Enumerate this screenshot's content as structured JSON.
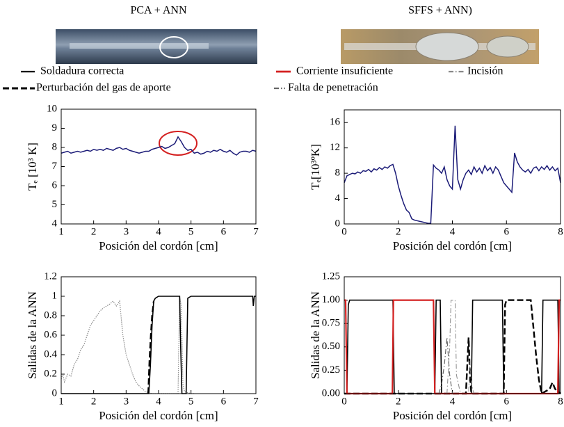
{
  "chart_data": [
    {
      "type": "line",
      "title": "PCA + ANN",
      "xlabel": "Posición del cordón [cm]",
      "ylabel": "Tₑ [10³ K]",
      "xlim": [
        1,
        7
      ],
      "xticks": [
        1,
        2,
        3,
        4,
        5,
        6,
        7
      ],
      "ylim": [
        4,
        10
      ],
      "yticks": [
        4,
        5,
        6,
        7,
        8,
        9,
        10
      ],
      "x": [
        1.0,
        1.1,
        1.2,
        1.3,
        1.4,
        1.5,
        1.6,
        1.7,
        1.8,
        1.9,
        2.0,
        2.1,
        2.2,
        2.3,
        2.4,
        2.5,
        2.6,
        2.7,
        2.8,
        2.9,
        3.0,
        3.1,
        3.2,
        3.3,
        3.4,
        3.5,
        3.6,
        3.7,
        3.8,
        3.9,
        4.0,
        4.1,
        4.2,
        4.3,
        4.4,
        4.5,
        4.6,
        4.7,
        4.8,
        4.9,
        5.0,
        5.1,
        5.2,
        5.3,
        5.4,
        5.5,
        5.6,
        5.7,
        5.8,
        5.9,
        6.0,
        6.1,
        6.2,
        6.3,
        6.4,
        6.5,
        6.6,
        6.7,
        6.8,
        6.9,
        7.0
      ],
      "series": [
        {
          "color": "#1c1c78",
          "style": "solid",
          "width": 1.5,
          "values": [
            7.7,
            7.75,
            7.8,
            7.7,
            7.75,
            7.8,
            7.75,
            7.8,
            7.85,
            7.8,
            7.9,
            7.85,
            7.9,
            7.85,
            7.95,
            7.9,
            7.85,
            7.95,
            8.0,
            7.9,
            7.95,
            7.85,
            7.8,
            7.75,
            7.7,
            7.75,
            7.8,
            7.8,
            7.9,
            7.95,
            8.0,
            8.05,
            7.95,
            8.0,
            8.1,
            8.2,
            8.55,
            8.3,
            8.0,
            7.85,
            7.9,
            7.7,
            7.75,
            7.65,
            7.7,
            7.8,
            7.75,
            7.85,
            7.8,
            7.9,
            7.8,
            7.75,
            7.85,
            7.7,
            7.6,
            7.75,
            7.8,
            7.8,
            7.75,
            7.85,
            7.8
          ]
        }
      ]
    },
    {
      "type": "line",
      "title": "SFFS + ANN)",
      "xlabel": "Posición del cordón [cm]",
      "ylabel": "Tₑ[10³ºK]",
      "xlim": [
        0,
        8
      ],
      "xticks": [
        0,
        2,
        4,
        6,
        8
      ],
      "ylim": [
        0,
        18
      ],
      "yticks": [
        0,
        4,
        8,
        12,
        16
      ],
      "x": [
        0.0,
        0.1,
        0.2,
        0.3,
        0.4,
        0.5,
        0.6,
        0.7,
        0.8,
        0.9,
        1.0,
        1.1,
        1.2,
        1.3,
        1.4,
        1.5,
        1.6,
        1.7,
        1.8,
        1.9,
        2.0,
        2.1,
        2.2,
        2.3,
        2.4,
        2.5,
        2.6,
        2.7,
        2.8,
        2.9,
        3.0,
        3.1,
        3.2,
        3.3,
        3.4,
        3.5,
        3.6,
        3.7,
        3.8,
        3.9,
        4.0,
        4.1,
        4.2,
        4.3,
        4.4,
        4.5,
        4.6,
        4.7,
        4.8,
        4.9,
        5.0,
        5.1,
        5.2,
        5.3,
        5.4,
        5.5,
        5.6,
        5.7,
        5.8,
        5.9,
        6.0,
        6.1,
        6.2,
        6.3,
        6.4,
        6.5,
        6.6,
        6.7,
        6.8,
        6.9,
        7.0,
        7.1,
        7.2,
        7.3,
        7.4,
        7.5,
        7.6,
        7.7,
        7.8,
        7.9,
        8.0
      ],
      "series": [
        {
          "color": "#1c1c78",
          "style": "solid",
          "width": 1.5,
          "values": [
            6.5,
            7.6,
            7.8,
            8.0,
            7.9,
            8.2,
            8.0,
            8.4,
            8.3,
            8.6,
            8.2,
            8.7,
            8.5,
            8.9,
            8.6,
            9.0,
            8.8,
            9.2,
            9.4,
            8.0,
            6.0,
            4.5,
            3.2,
            2.2,
            1.8,
            0.8,
            0.6,
            0.5,
            0.4,
            0.3,
            0.2,
            0.1,
            0.1,
            9.3,
            8.8,
            8.5,
            8.0,
            9.0,
            7.0,
            6.0,
            5.5,
            15.5,
            7.0,
            5.5,
            7.0,
            8.0,
            8.5,
            7.8,
            9.0,
            8.2,
            8.8,
            8.0,
            9.2,
            8.4,
            8.9,
            8.0,
            9.0,
            8.5,
            7.5,
            6.5,
            6.0,
            5.5,
            5.0,
            11.2,
            9.8,
            9.0,
            8.5,
            8.2,
            8.6,
            8.0,
            8.8,
            9.0,
            8.4,
            9.0,
            8.6,
            9.2,
            8.5,
            9.0,
            8.4,
            8.8,
            6.5
          ]
        }
      ]
    },
    {
      "type": "line",
      "xlabel": "Posición del cordón [cm]",
      "ylabel": "Salidas de la ANN",
      "xlim": [
        1,
        7
      ],
      "xticks": [
        1,
        2,
        3,
        4,
        5,
        6,
        7
      ],
      "ylim": [
        0,
        1.2
      ],
      "yticks": [
        0,
        0.2,
        0.4,
        0.6,
        0.8,
        1,
        1.2
      ],
      "series": [
        {
          "color": "#888888",
          "style": "dotted",
          "width": 1.2,
          "x": [
            1.0,
            1.05,
            1.1,
            1.2,
            1.3,
            1.4,
            1.5,
            1.6,
            1.7,
            1.8,
            1.9,
            2.0,
            2.1,
            2.2,
            2.3,
            2.4,
            2.5,
            2.6,
            2.7,
            2.8,
            2.9,
            3.0,
            3.1,
            3.2,
            3.3,
            3.4,
            3.5,
            3.6,
            3.7,
            3.8,
            4.6,
            4.65,
            4.7,
            4.75,
            4.8,
            4.9,
            5.0,
            5.1
          ],
          "values": [
            0.15,
            0.2,
            0.12,
            0.2,
            0.18,
            0.3,
            0.35,
            0.45,
            0.5,
            0.6,
            0.7,
            0.75,
            0.8,
            0.85,
            0.88,
            0.9,
            0.92,
            0.95,
            0.9,
            0.95,
            0.6,
            0.4,
            0.3,
            0.2,
            0.12,
            0.08,
            0.05,
            0.02,
            0.01,
            0,
            0,
            1,
            0.9,
            0.1,
            0.02,
            0.01,
            0,
            0
          ]
        },
        {
          "color": "#000000",
          "style": "solid",
          "width": 1.6,
          "x": [
            1,
            3.7,
            3.75,
            3.8,
            3.85,
            3.9,
            4.0,
            4.65,
            4.68,
            4.72,
            4.85,
            4.9,
            5.0,
            6.9,
            6.92,
            6.95,
            7.0
          ],
          "values": [
            0,
            0,
            0.3,
            0.7,
            0.95,
            0.98,
            1,
            1,
            0.5,
            0,
            0,
            0.98,
            1,
            1,
            0.9,
            1,
            1
          ]
        },
        {
          "color": "#000000",
          "style": "dashed",
          "width": 2.2,
          "x": [
            3.68,
            3.72,
            3.76,
            3.8,
            3.85
          ],
          "values": [
            0,
            0.35,
            0.6,
            0.8,
            0.95
          ]
        }
      ]
    },
    {
      "type": "line",
      "xlabel": "Posición del cordón [cm]",
      "ylabel": "Salidas de la ANN",
      "xlim": [
        0,
        8
      ],
      "xticks": [
        0,
        2,
        4,
        6,
        8
      ],
      "ylim": [
        0,
        1.25
      ],
      "yticks": [
        {
          "value": 0,
          "label": "0.00"
        },
        {
          "value": 0.25,
          "label": "0.25"
        },
        {
          "value": 0.5,
          "label": "0.50"
        },
        {
          "value": 0.75,
          "label": "0.75"
        },
        {
          "value": 1,
          "label": "1.00"
        },
        {
          "value": 1.25,
          "label": "1.25"
        }
      ],
      "series": [
        {
          "name": "Soldadura correcta",
          "color": "#000000",
          "style": "solid",
          "width": 1.6,
          "x": [
            0,
            0.1,
            0.15,
            0.2,
            0.3,
            1.8,
            1.85,
            3.35,
            3.4,
            3.55,
            3.6,
            4.7,
            4.75,
            4.8,
            5.85,
            5.9,
            7.3,
            7.35,
            7.9,
            7.95,
            8.0
          ],
          "values": [
            0,
            0,
            0.95,
            1,
            1,
            1,
            0,
            0,
            1,
            1,
            0,
            0,
            1,
            1,
            1,
            0,
            0,
            1,
            1,
            0,
            0
          ]
        },
        {
          "name": "Perturbación del gas de aporte",
          "color": "#000000",
          "style": "dashed",
          "width": 2.4,
          "x": [
            0,
            4.5,
            4.55,
            4.6,
            4.65,
            4.7,
            5.9,
            5.95,
            6.0,
            6.9,
            7.0,
            7.1,
            7.2,
            7.3,
            7.6,
            7.7,
            7.8,
            8.0
          ],
          "values": [
            0,
            0,
            0.3,
            0.6,
            0.2,
            0,
            0,
            0.95,
            1,
            1,
            0.7,
            0.4,
            0.15,
            0,
            0.05,
            0.12,
            0.05,
            0
          ]
        },
        {
          "name": "Corriente insuficiente",
          "color": "#d42020",
          "style": "solid",
          "width": 2.2,
          "x": [
            0,
            0.05,
            0.1,
            1.78,
            1.82,
            3.3,
            3.35,
            7.9,
            7.95,
            8.0
          ],
          "values": [
            1,
            1,
            0,
            0,
            1,
            1,
            0,
            0,
            1,
            1
          ]
        },
        {
          "name": "Incisión",
          "color": "#888888",
          "style": "dashdot",
          "width": 1,
          "x": [
            3.8,
            3.9,
            3.95,
            4.1,
            4.15,
            4.3,
            4.6,
            4.65,
            4.7,
            4.8
          ],
          "values": [
            0,
            0.5,
            1,
            1,
            0.2,
            0,
            0,
            0.35,
            0.1,
            0
          ]
        },
        {
          "name": "Falta de penetración",
          "color": "#666666",
          "style": "dashdot",
          "width": 1.2,
          "x": [
            3.5,
            3.6,
            3.7,
            3.8,
            3.9,
            4.0
          ],
          "values": [
            0,
            0.1,
            0.3,
            0.6,
            0.2,
            0
          ]
        }
      ]
    }
  ]
}
